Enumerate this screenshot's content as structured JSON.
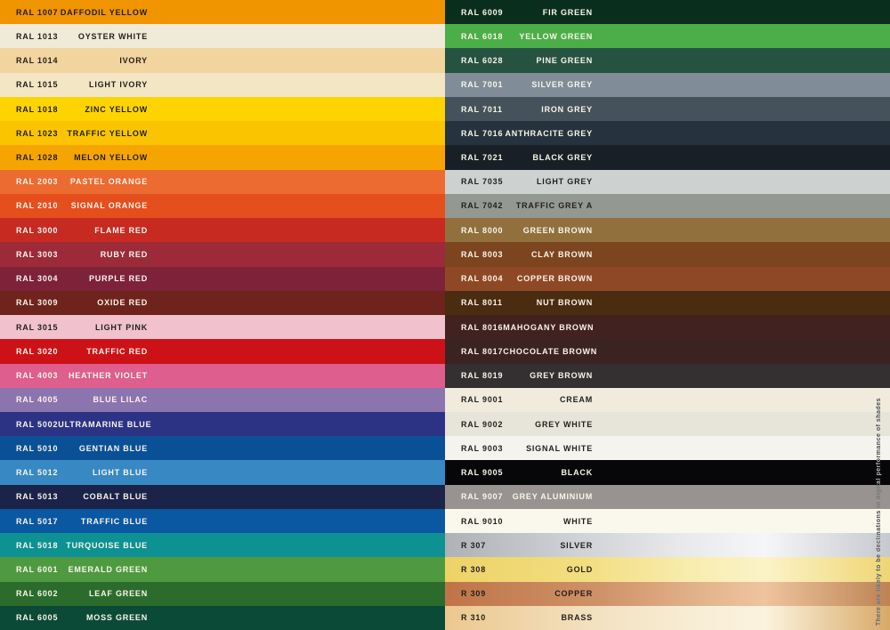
{
  "colors": {
    "text_dark": "#221f1c",
    "text_light": "#f9f5eb"
  },
  "note": {
    "text": "There are likely to be declinations in digital performance of shades"
  },
  "chart_data": {
    "type": "table",
    "columns": [
      "code",
      "name"
    ],
    "left_rows": [
      {
        "code": "RAL 1007",
        "name": "DAFFODIL YELLOW",
        "bg": "#f09400",
        "fg": "dark"
      },
      {
        "code": "RAL 1013",
        "name": "OYSTER WHITE",
        "bg": "#f0ead9",
        "fg": "dark"
      },
      {
        "code": "RAL 1014",
        "name": "IVORY",
        "bg": "#f2d59e",
        "fg": "dark"
      },
      {
        "code": "RAL 1015",
        "name": "LIGHT IVORY",
        "bg": "#f3e6c5",
        "fg": "dark"
      },
      {
        "code": "RAL 1018",
        "name": "ZINC YELLOW",
        "bg": "#fdd400",
        "fg": "dark"
      },
      {
        "code": "RAL 1023",
        "name": "TRAFFIC YELLOW",
        "bg": "#fac500",
        "fg": "dark"
      },
      {
        "code": "RAL 1028",
        "name": "MELON YELLOW",
        "bg": "#f6a500",
        "fg": "dark"
      },
      {
        "code": "RAL 2003",
        "name": "PASTEL ORANGE",
        "bg": "#ec6b30",
        "fg": "light"
      },
      {
        "code": "RAL 2010",
        "name": "SIGNAL ORANGE",
        "bg": "#e54e1d",
        "fg": "light"
      },
      {
        "code": "RAL 3000",
        "name": "FLAME RED",
        "bg": "#c62a21",
        "fg": "light"
      },
      {
        "code": "RAL 3003",
        "name": "RUBY RED",
        "bg": "#9c2a38",
        "fg": "light"
      },
      {
        "code": "RAL 3004",
        "name": "PURPLE RED",
        "bg": "#7d2239",
        "fg": "light"
      },
      {
        "code": "RAL 3009",
        "name": "OXIDE RED",
        "bg": "#6e241c",
        "fg": "light"
      },
      {
        "code": "RAL 3015",
        "name": "LIGHT PINK",
        "bg": "#f1c2ce",
        "fg": "dark"
      },
      {
        "code": "RAL 3020",
        "name": "TRAFFIC RED",
        "bg": "#cd1217",
        "fg": "light"
      },
      {
        "code": "RAL 4003",
        "name": "HEATHER VIOLET",
        "bg": "#de5e8d",
        "fg": "light"
      },
      {
        "code": "RAL 4005",
        "name": "BLUE LILAC",
        "bg": "#8c74af",
        "fg": "light"
      },
      {
        "code": "RAL 5002",
        "name": "ULTRAMARINE BLUE",
        "bg": "#2c3284",
        "fg": "light"
      },
      {
        "code": "RAL 5010",
        "name": "GENTIAN BLUE",
        "bg": "#0a5096",
        "fg": "light"
      },
      {
        "code": "RAL 5012",
        "name": "LIGHT BLUE",
        "bg": "#3788c3",
        "fg": "light"
      },
      {
        "code": "RAL 5013",
        "name": "COBALT BLUE",
        "bg": "#1c2349",
        "fg": "light"
      },
      {
        "code": "RAL 5017",
        "name": "TRAFFIC BLUE",
        "bg": "#0a58a2",
        "fg": "light"
      },
      {
        "code": "RAL 5018",
        "name": "TURQUOISE BLUE",
        "bg": "#0d9192",
        "fg": "light"
      },
      {
        "code": "RAL 6001",
        "name": "EMERALD GREEN",
        "bg": "#4f9a41",
        "fg": "light"
      },
      {
        "code": "RAL 6002",
        "name": "LEAF GREEN",
        "bg": "#2b6c2c",
        "fg": "light"
      },
      {
        "code": "RAL 6005",
        "name": "MOSS GREEN",
        "bg": "#0b4a36",
        "fg": "light"
      }
    ],
    "right_rows": [
      {
        "code": "RAL 6009",
        "name": "FIR GREEN",
        "bg": "#0a2e1d",
        "fg": "light"
      },
      {
        "code": "RAL 6018",
        "name": "YELLOW GREEN",
        "bg": "#4cae48",
        "fg": "light"
      },
      {
        "code": "RAL 6028",
        "name": "PINE GREEN",
        "bg": "#265241",
        "fg": "light"
      },
      {
        "code": "RAL 7001",
        "name": "SILVER GREY",
        "bg": "#808d98",
        "fg": "light"
      },
      {
        "code": "RAL 7011",
        "name": "IRON GREY",
        "bg": "#46525b",
        "fg": "light"
      },
      {
        "code": "RAL 7016",
        "name": "ANTHRACITE GREY",
        "bg": "#26333e",
        "fg": "light"
      },
      {
        "code": "RAL 7021",
        "name": "BLACK GREY",
        "bg": "#181f26",
        "fg": "light"
      },
      {
        "code": "RAL 7035",
        "name": "LIGHT GREY",
        "bg": "#cdd2d0",
        "fg": "dark"
      },
      {
        "code": "RAL 7042",
        "name": "TRAFFIC GREY A",
        "bg": "#939893",
        "fg": "dark"
      },
      {
        "code": "RAL 8000",
        "name": "GREEN BROWN",
        "bg": "#91703e",
        "fg": "light"
      },
      {
        "code": "RAL 8003",
        "name": "CLAY BROWN",
        "bg": "#7c451f",
        "fg": "light"
      },
      {
        "code": "RAL 8004",
        "name": "COPPER BROWN",
        "bg": "#8f4826",
        "fg": "light"
      },
      {
        "code": "RAL 8011",
        "name": "NUT BROWN",
        "bg": "#4a2c10",
        "fg": "light"
      },
      {
        "code": "RAL 8016",
        "name": "MAHOGANY BROWN",
        "bg": "#412220",
        "fg": "light"
      },
      {
        "code": "RAL 8017",
        "name": "CHOCOLATE BROWN",
        "bg": "#3b2321",
        "fg": "light"
      },
      {
        "code": "RAL 8019",
        "name": "GREY BROWN",
        "bg": "#343031",
        "fg": "light"
      },
      {
        "code": "RAL 9001",
        "name": "CREAM",
        "bg": "#f0ebdc",
        "fg": "dark"
      },
      {
        "code": "RAL 9002",
        "name": "GREY WHITE",
        "bg": "#e7e5d9",
        "fg": "dark"
      },
      {
        "code": "RAL 9003",
        "name": "SIGNAL WHITE",
        "bg": "#f4f3ee",
        "fg": "dark"
      },
      {
        "code": "RAL 9005",
        "name": "BLACK",
        "bg": "#070709",
        "fg": "light"
      },
      {
        "code": "RAL 9007",
        "name": "GREY ALUMINIUM",
        "bg": "#989390",
        "fg": "light"
      },
      {
        "code": "RAL 9010",
        "name": "WHITE",
        "bg": "#faf7ec",
        "fg": "dark"
      },
      {
        "code": "R 307",
        "name": "SILVER",
        "bg": "linear-gradient(90deg,#aeb1b6 0%,#cfd2d6 30%,#e6e8ea 52%,#f5f6f7 72%,#c6c9cf 100%)",
        "fg": "dark"
      },
      {
        "code": "R 308",
        "name": "GOLD",
        "bg": "linear-gradient(90deg,#edd266 0%,#f2dd7e 30%,#f8ecae 55%,#fbf3c8 72%,#efd573 100%)",
        "fg": "dark"
      },
      {
        "code": "R 309",
        "name": "COPPER",
        "bg": "linear-gradient(90deg,#bf7448 0%,#cf9268 35%,#e5b78f 60%,#eec49e 72%,#bd8354 100%)",
        "fg": "dark"
      },
      {
        "code": "R 310",
        "name": "BRASS",
        "bg": "linear-gradient(90deg,#ecc88f 0%,#f3e2c2 35%,#f9efd8 60%,#fbf3de 72%,#d8a967 100%)",
        "fg": "dark"
      }
    ]
  }
}
